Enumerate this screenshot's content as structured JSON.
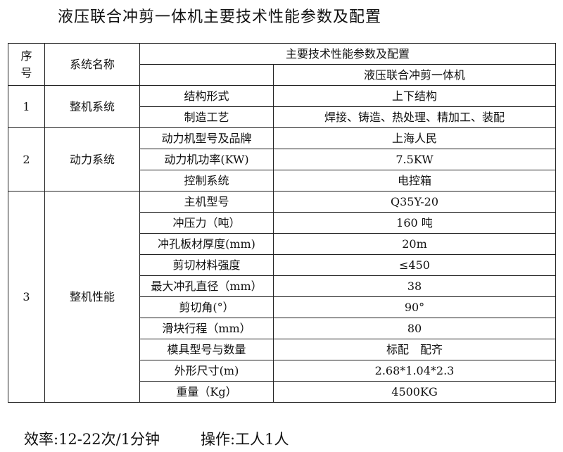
{
  "title": "液压联合冲剪一体机主要技术性能参数及配置",
  "header": {
    "no": "序号",
    "system": "系统名称",
    "params": "主要技术性能参数及配置",
    "machine": "液压联合冲剪一体机"
  },
  "groups": [
    {
      "no": "1",
      "system": "整机系统",
      "rows": [
        {
          "item": "结构形式",
          "value": "上下结构"
        },
        {
          "item": "制造工艺",
          "value": "焊接、铸造、热处理、精加工、装配"
        }
      ]
    },
    {
      "no": "2",
      "system": "动力系统",
      "rows": [
        {
          "item": "动力机型号及品牌",
          "value": "上海人民"
        },
        {
          "item": "动力机功率(KW)",
          "value": "7.5KW"
        },
        {
          "item": "控制系统",
          "value": "电控箱"
        }
      ]
    },
    {
      "no": "3",
      "system": "整机性能",
      "rows": [
        {
          "item": "主机型号",
          "value": "Q35Y-20"
        },
        {
          "item": "冲压力（吨）",
          "value": "160 吨"
        },
        {
          "item": "冲孔板材厚度(mm)",
          "value": "20m"
        },
        {
          "item": "剪切材料强度",
          "value": "≤450"
        },
        {
          "item": "最大冲孔直径（mm）",
          "value": "38"
        },
        {
          "item": "剪切角(°）",
          "value": "90°"
        },
        {
          "item": "滑块行程（mm）",
          "value": "80"
        },
        {
          "item": "模具型号与数量",
          "value": "标配　配齐"
        },
        {
          "item": "外形尺寸(m)",
          "value": "2.68*1.04*2.3"
        },
        {
          "item": "重量（Kg）",
          "value": "4500KG"
        }
      ]
    }
  ],
  "footer": {
    "efficiency": "效率:12-22次/1分钟",
    "operation": "操作:工人1人"
  }
}
